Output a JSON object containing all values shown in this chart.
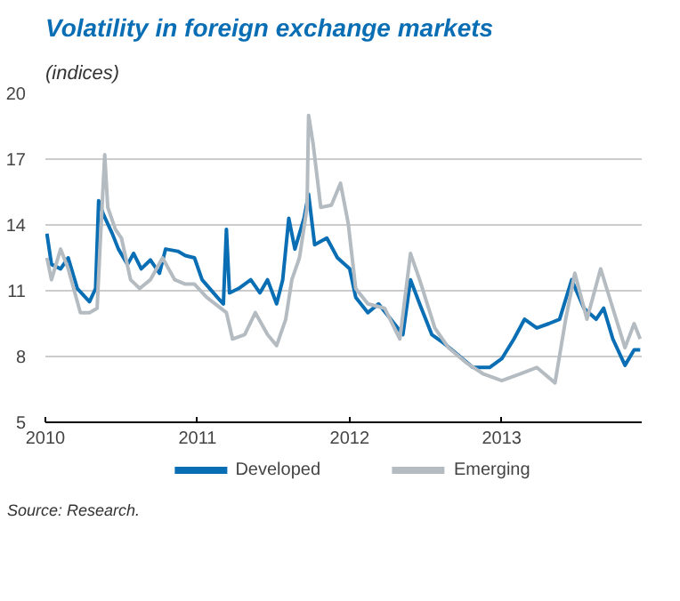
{
  "chart_data": {
    "type": "line",
    "title": "Volatility in foreign exchange markets",
    "subtitle": "(indices)",
    "annotations": [
      "Source: Research."
    ],
    "xlim": [
      2010,
      2013.92
    ],
    "xticks": [
      2010,
      2011,
      2012,
      2013
    ],
    "ylim": [
      5,
      20
    ],
    "yticks": [
      5,
      8,
      11,
      14,
      17,
      20
    ],
    "grid": "y",
    "legend": "bottom",
    "series": [
      {
        "name": "Developed",
        "color": "#0a6eb4",
        "x": [
          2010.01,
          2010.04,
          2010.1,
          2010.15,
          2010.21,
          2010.29,
          2010.33,
          2010.35,
          2010.38,
          2010.44,
          2010.48,
          2010.54,
          2010.58,
          2010.63,
          2010.69,
          2010.75,
          2010.79,
          2010.87,
          2010.92,
          2010.98,
          2011.03,
          2011.13,
          2011.17,
          2011.19,
          2011.21,
          2011.27,
          2011.35,
          2011.41,
          2011.46,
          2011.52,
          2011.56,
          2011.6,
          2011.64,
          2011.7,
          2011.73,
          2011.77,
          2011.85,
          2011.92,
          2012.0,
          2012.04,
          2012.12,
          2012.19,
          2012.27,
          2012.35,
          2012.4,
          2012.46,
          2012.54,
          2012.62,
          2012.69,
          2012.81,
          2012.92,
          2013.0,
          2013.08,
          2013.15,
          2013.23,
          2013.31,
          2013.38,
          2013.46,
          2013.54,
          2013.62,
          2013.67,
          2013.73,
          2013.81,
          2013.87,
          2013.91
        ],
        "values": [
          13.6,
          12.2,
          12.0,
          12.5,
          11.1,
          10.5,
          11.1,
          15.1,
          14.5,
          13.6,
          12.9,
          12.2,
          12.7,
          12.0,
          12.4,
          11.8,
          12.9,
          12.8,
          12.6,
          12.5,
          11.5,
          10.7,
          10.4,
          13.8,
          10.9,
          11.1,
          11.5,
          10.9,
          11.5,
          10.4,
          11.5,
          14.3,
          12.9,
          14.3,
          15.4,
          13.1,
          13.4,
          12.5,
          12.0,
          10.7,
          10.0,
          10.4,
          9.7,
          9.0,
          11.5,
          10.4,
          9.0,
          8.6,
          8.2,
          7.5,
          7.5,
          7.9,
          8.8,
          9.7,
          9.3,
          9.5,
          9.7,
          11.5,
          10.2,
          9.7,
          10.2,
          8.8,
          7.6,
          8.3,
          8.3
        ]
      },
      {
        "name": "Emerging",
        "color": "#b4bcc2",
        "x": [
          2010.01,
          2010.04,
          2010.1,
          2010.15,
          2010.23,
          2010.29,
          2010.34,
          2010.36,
          2010.39,
          2010.41,
          2010.46,
          2010.5,
          2010.56,
          2010.62,
          2010.69,
          2010.77,
          2010.85,
          2010.92,
          2010.98,
          2011.06,
          2011.19,
          2011.23,
          2011.31,
          2011.38,
          2011.46,
          2011.52,
          2011.58,
          2011.62,
          2011.67,
          2011.72,
          2011.73,
          2011.76,
          2011.81,
          2011.88,
          2011.94,
          2011.99,
          2012.04,
          2012.12,
          2012.23,
          2012.33,
          2012.4,
          2012.46,
          2012.56,
          2012.65,
          2012.77,
          2012.88,
          2013.0,
          2013.12,
          2013.23,
          2013.35,
          2013.42,
          2013.48,
          2013.56,
          2013.65,
          2013.73,
          2013.81,
          2013.87,
          2013.91
        ],
        "values": [
          12.5,
          11.5,
          12.9,
          12.0,
          10.0,
          10.0,
          10.2,
          13.1,
          17.2,
          14.8,
          13.8,
          13.4,
          11.5,
          11.1,
          11.5,
          12.5,
          11.5,
          11.3,
          11.3,
          10.7,
          10.0,
          8.8,
          9.0,
          10.0,
          9.0,
          8.5,
          9.7,
          11.5,
          12.5,
          14.8,
          19.0,
          17.7,
          14.8,
          14.9,
          15.9,
          14.1,
          11.1,
          10.4,
          10.2,
          8.8,
          12.7,
          11.5,
          9.3,
          8.4,
          7.7,
          7.2,
          6.9,
          7.2,
          7.5,
          6.8,
          9.7,
          11.8,
          9.7,
          12.0,
          10.2,
          8.4,
          9.5,
          8.8
        ]
      }
    ]
  }
}
